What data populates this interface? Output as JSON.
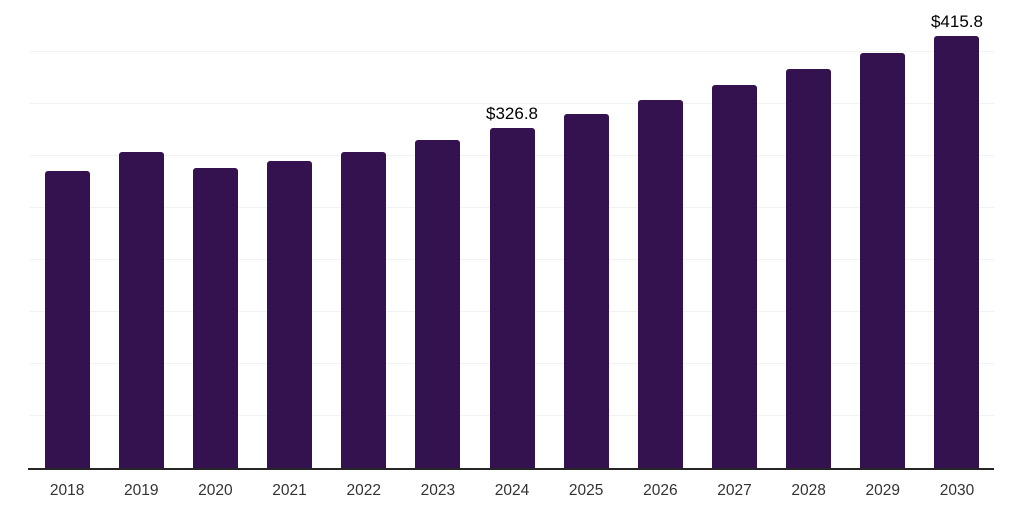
{
  "chart_data": {
    "type": "bar",
    "title": "",
    "xlabel": "",
    "ylabel": "",
    "categories": [
      "2018",
      "2019",
      "2020",
      "2021",
      "2022",
      "2023",
      "2024",
      "2025",
      "2026",
      "2027",
      "2028",
      "2029",
      "2030"
    ],
    "values": [
      285.6,
      303.5,
      288.9,
      295.5,
      304.1,
      315.3,
      326.8,
      340.2,
      354.1,
      368.6,
      383.7,
      399.4,
      415.8
    ],
    "data_labels": [
      {
        "category": "2024",
        "text": "$326.8"
      },
      {
        "category": "2030",
        "text": "$415.8"
      }
    ],
    "ylim": [
      0,
      450
    ],
    "gridline_step": 50,
    "grid": true,
    "legend": false,
    "bar_color": "#34114F",
    "gridline_color": "#f2f2f2",
    "axis_color": "#262626",
    "tick_label_color": "#333333",
    "data_label_color": "#000000"
  }
}
